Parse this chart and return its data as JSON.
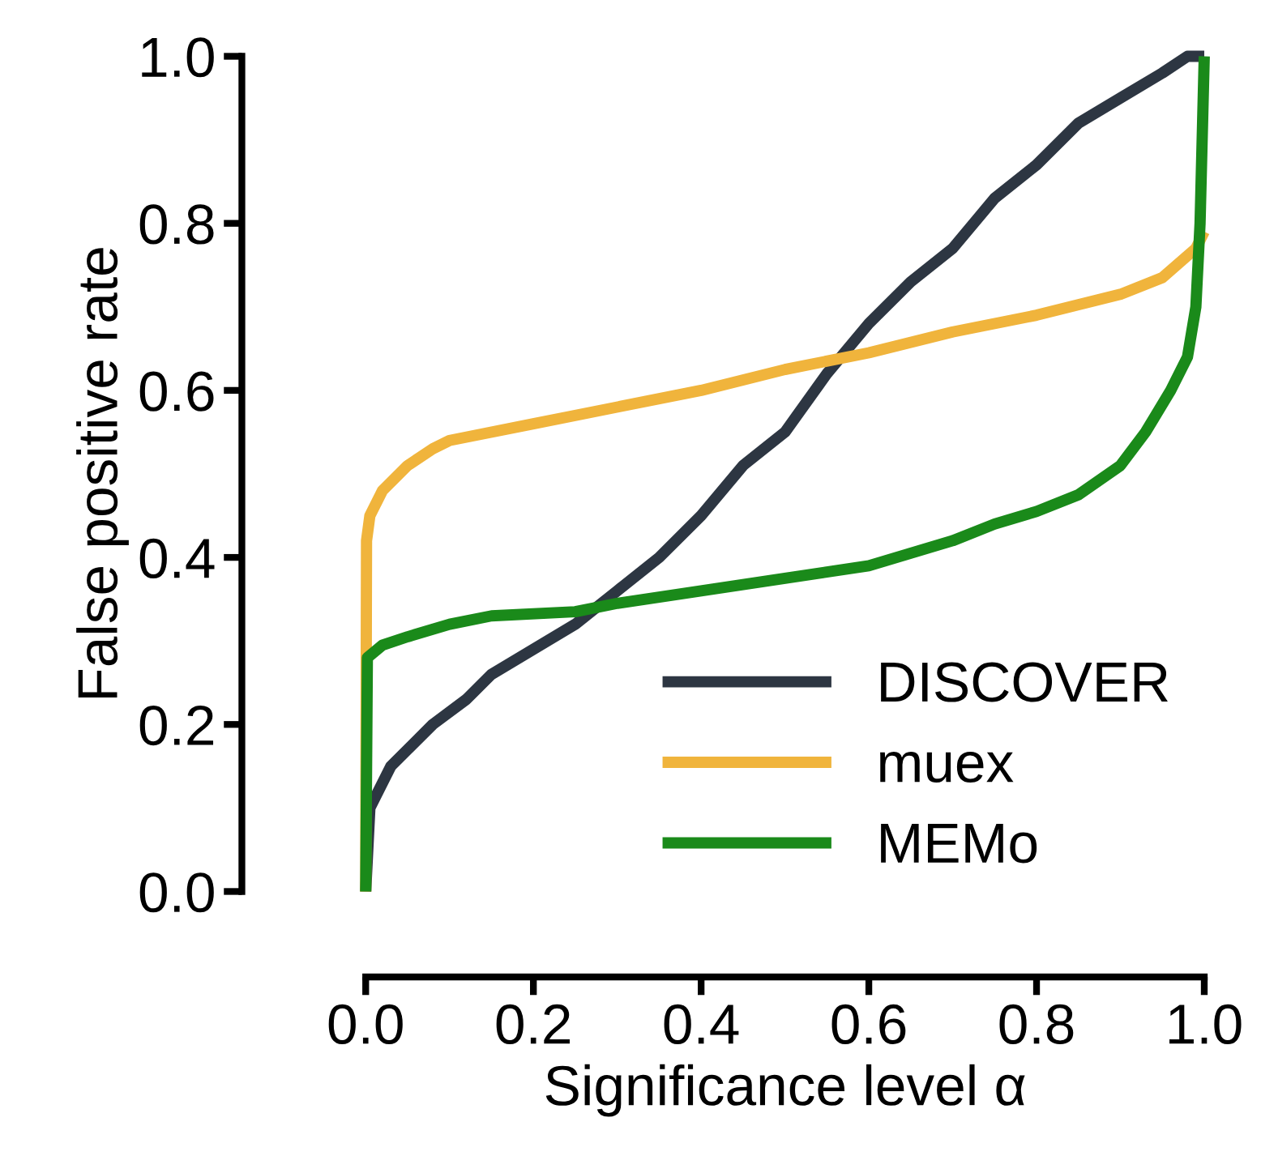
{
  "chart_data": {
    "type": "line",
    "xlabel": "Significance level α",
    "ylabel": "False positive rate",
    "xlim": [
      0,
      1
    ],
    "ylim": [
      0,
      1
    ],
    "xticks": [
      {
        "value": 0,
        "label": "0.0"
      },
      {
        "value": 0.2,
        "label": "0.2"
      },
      {
        "value": 0.4,
        "label": "0.4"
      },
      {
        "value": 0.6,
        "label": "0.6"
      },
      {
        "value": 0.8,
        "label": "0.8"
      },
      {
        "value": 1,
        "label": "1.0"
      }
    ],
    "yticks": [
      {
        "value": 0,
        "label": "0.0"
      },
      {
        "value": 0.2,
        "label": "0.2"
      },
      {
        "value": 0.4,
        "label": "0.4"
      },
      {
        "value": 0.6,
        "label": "0.6"
      },
      {
        "value": 0.8,
        "label": "0.8"
      },
      {
        "value": 1,
        "label": "1.0"
      }
    ],
    "grid": false,
    "legend": "bottom right",
    "marker": "none",
    "line_style": "solid",
    "series": [
      {
        "name": "DISCOVER",
        "color": "#2d3642",
        "x": [
          0,
          0.005,
          0.03,
          0.08,
          0.12,
          0.15,
          0.2,
          0.25,
          0.3,
          0.35,
          0.4,
          0.45,
          0.5,
          0.55,
          0.6,
          0.65,
          0.7,
          0.75,
          0.8,
          0.85,
          0.9,
          0.95,
          0.98,
          1.0
        ],
        "values": [
          0,
          0.1,
          0.15,
          0.2,
          0.23,
          0.26,
          0.29,
          0.32,
          0.36,
          0.4,
          0.45,
          0.51,
          0.55,
          0.62,
          0.68,
          0.73,
          0.77,
          0.83,
          0.87,
          0.92,
          0.95,
          0.98,
          1.0,
          1.0
        ]
      },
      {
        "name": "muex",
        "color": "#f0b43c",
        "x": [
          0,
          0.001,
          0.005,
          0.02,
          0.05,
          0.08,
          0.1,
          0.2,
          0.3,
          0.4,
          0.5,
          0.6,
          0.7,
          0.8,
          0.9,
          0.95,
          0.99,
          1.0
        ],
        "values": [
          0,
          0.42,
          0.45,
          0.48,
          0.51,
          0.53,
          0.54,
          0.56,
          0.58,
          0.6,
          0.625,
          0.645,
          0.67,
          0.69,
          0.715,
          0.735,
          0.77,
          0.79
        ]
      },
      {
        "name": "MEMo",
        "color": "#1a8a1a",
        "x": [
          0,
          0.002,
          0.02,
          0.05,
          0.1,
          0.15,
          0.25,
          0.3,
          0.4,
          0.5,
          0.6,
          0.65,
          0.7,
          0.75,
          0.8,
          0.85,
          0.9,
          0.93,
          0.96,
          0.98,
          0.99,
          0.995,
          1.0
        ],
        "values": [
          0,
          0.28,
          0.295,
          0.305,
          0.32,
          0.33,
          0.335,
          0.345,
          0.36,
          0.375,
          0.39,
          0.405,
          0.42,
          0.44,
          0.455,
          0.475,
          0.51,
          0.55,
          0.6,
          0.64,
          0.7,
          0.8,
          1.0
        ]
      }
    ]
  }
}
